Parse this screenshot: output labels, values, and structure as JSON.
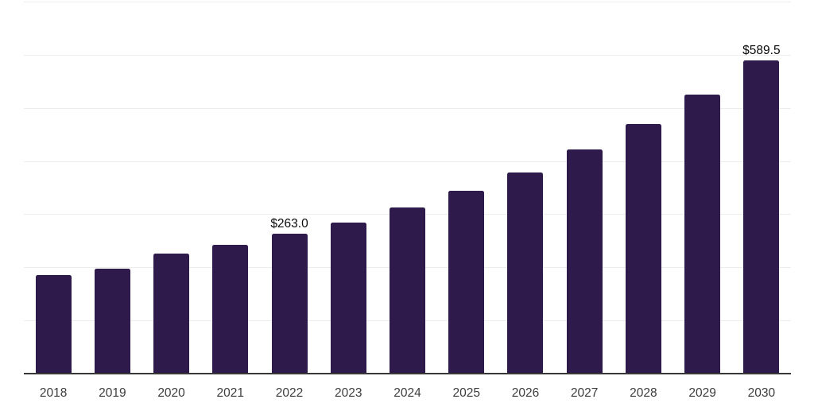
{
  "chart_data": {
    "type": "bar",
    "title": "",
    "xlabel": "",
    "ylabel": "",
    "categories": [
      "2018",
      "2019",
      "2020",
      "2021",
      "2022",
      "2023",
      "2024",
      "2025",
      "2026",
      "2027",
      "2028",
      "2029",
      "2030"
    ],
    "values": [
      185,
      197,
      226,
      242,
      263.0,
      284,
      312,
      344,
      379,
      422,
      470,
      525,
      589.5
    ],
    "data_labels": [
      "",
      "",
      "",
      "",
      "$263.0",
      "",
      "",
      "",
      "",
      "",
      "",
      "",
      "$589.5"
    ],
    "ylim": [
      0,
      700
    ],
    "gridline_step": 100,
    "grid": true,
    "legend_position": "none",
    "bar_color": "#2f1a4c",
    "axis_line_color": "#383838",
    "gridline_color": "#ededed",
    "tick_label_color": "#3d3d3d",
    "data_label_color": "#0a0a0a"
  }
}
